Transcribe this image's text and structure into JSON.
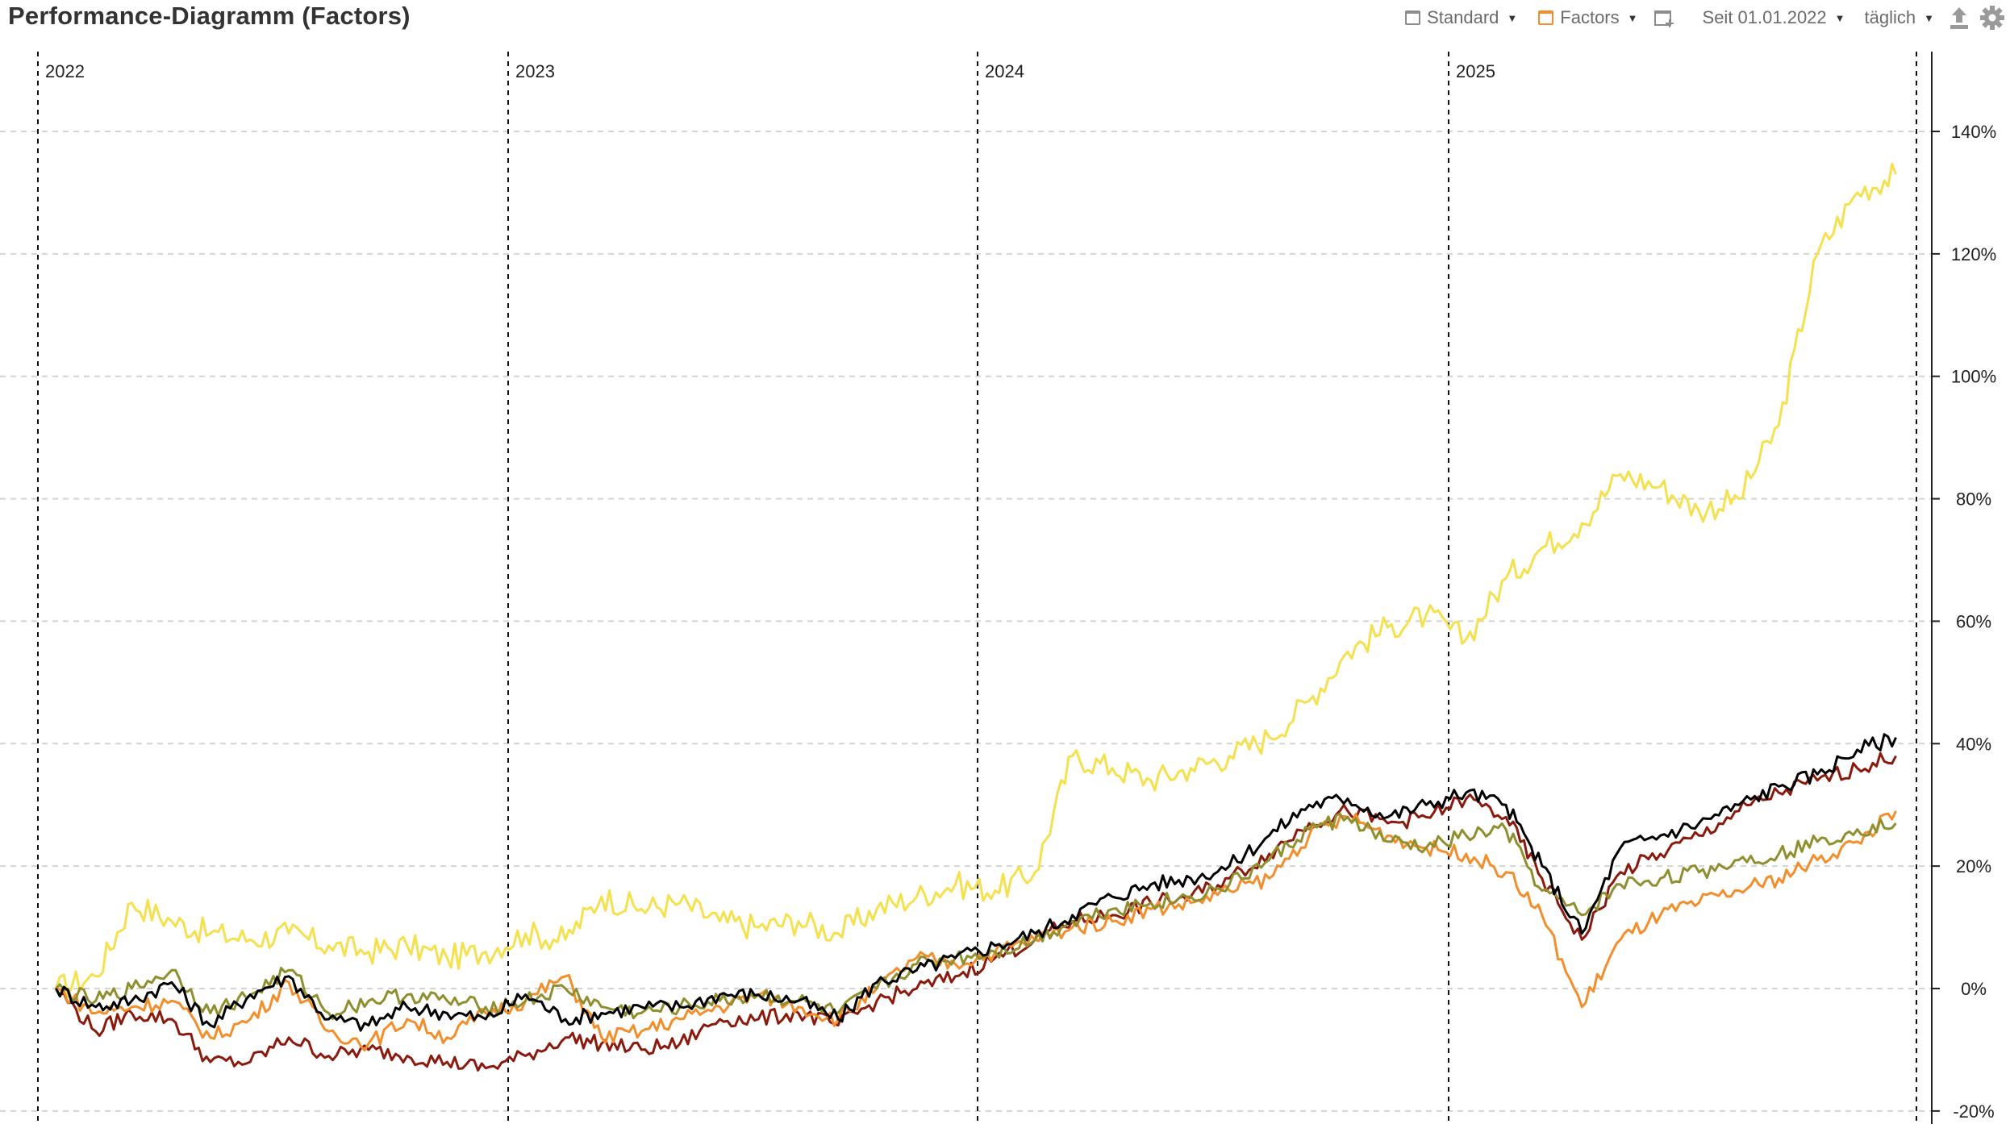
{
  "header": {
    "title": "Performance-Diagramm (Factors)"
  },
  "toolbar": {
    "standard_label": "Standard",
    "standard_color": "#8c8c8c",
    "factors_label": "Factors",
    "factors_color": "#f28e2b",
    "add_chart_icon": "add-chart-icon",
    "period_label": "Seit 01.01.2022",
    "interval_label": "täglich",
    "export_icon": "upload-icon",
    "settings_icon": "gear-icon"
  },
  "chart_data": {
    "type": "line",
    "title": "",
    "xlabel": "",
    "ylabel": "",
    "x_tick_labels": [
      "2022",
      "2023",
      "2024",
      "2025"
    ],
    "x_range": [
      "2022-01-01",
      "2025-12-31"
    ],
    "y_unit": "%",
    "y_ticks": [
      140,
      120,
      100,
      80,
      60,
      40,
      20,
      0,
      -20
    ],
    "y_tick_labels": [
      "140%",
      "120%",
      "100%",
      "80%",
      "60%",
      "40%",
      "20%",
      "0%",
      "-20%"
    ],
    "ylim": [
      -20,
      150
    ],
    "grid": "horizontal dashed",
    "year_markers": "vertical dashed",
    "series": [
      {
        "color": "#f5e050",
        "x": [
          "2022-01",
          "2022-02",
          "2022-03",
          "2022-04",
          "2022-05",
          "2022-06",
          "2022-07",
          "2022-08",
          "2022-09",
          "2022-10",
          "2022-11",
          "2022-12",
          "2023-01",
          "2023-02",
          "2023-03",
          "2023-04",
          "2023-05",
          "2023-06",
          "2023-07",
          "2023-08",
          "2023-09",
          "2023-10",
          "2023-11",
          "2023-12",
          "2024-01",
          "2024-02",
          "2024-03",
          "2024-04",
          "2024-05",
          "2024-06",
          "2024-07",
          "2024-08",
          "2024-09",
          "2024-10",
          "2024-11",
          "2024-12",
          "2025-01",
          "2025-02",
          "2025-03",
          "2025-04",
          "2025-05",
          "2025-06",
          "2025-07",
          "2025-08",
          "2025-09",
          "2025-10",
          "2025-11",
          "2025-12"
        ],
        "values": [
          0,
          2,
          14,
          11,
          9,
          8,
          9,
          7,
          6,
          7,
          5,
          6,
          9,
          8,
          15,
          13,
          14,
          11,
          10,
          11,
          9,
          13,
          15,
          17,
          16,
          19,
          38,
          36,
          34,
          36,
          38,
          41,
          47,
          55,
          59,
          61,
          57,
          67,
          72,
          76,
          84,
          82,
          78,
          80,
          92,
          120,
          130,
          133
        ]
      },
      {
        "color": "#000000",
        "x": [
          "2022-01",
          "2022-02",
          "2022-03",
          "2022-04",
          "2022-05",
          "2022-06",
          "2022-07",
          "2022-08",
          "2022-09",
          "2022-10",
          "2022-11",
          "2022-12",
          "2023-01",
          "2023-02",
          "2023-03",
          "2023-04",
          "2023-05",
          "2023-06",
          "2023-07",
          "2023-08",
          "2023-09",
          "2023-10",
          "2023-11",
          "2023-12",
          "2024-01",
          "2024-02",
          "2024-03",
          "2024-04",
          "2024-05",
          "2024-06",
          "2024-07",
          "2024-08",
          "2024-09",
          "2024-10",
          "2024-11",
          "2024-12",
          "2025-01",
          "2025-02",
          "2025-03",
          "2025-04",
          "2025-05",
          "2025-06",
          "2025-07",
          "2025-08",
          "2025-09",
          "2025-10",
          "2025-11",
          "2025-12"
        ],
        "values": [
          0,
          -3,
          -2,
          1,
          -6,
          -1,
          2,
          -5,
          -6,
          -3,
          -4,
          -5,
          -1,
          -5,
          -4,
          -3,
          -3,
          -1,
          -1,
          -2,
          -5,
          1,
          3,
          5,
          7,
          9,
          12,
          15,
          17,
          18,
          20,
          25,
          30,
          31,
          28,
          30,
          32,
          30,
          20,
          9,
          23,
          25,
          27,
          30,
          33,
          35,
          39,
          41
        ]
      },
      {
        "color": "#8b1a0e",
        "x": [
          "2022-01",
          "2022-02",
          "2022-03",
          "2022-04",
          "2022-05",
          "2022-06",
          "2022-07",
          "2022-08",
          "2022-09",
          "2022-10",
          "2022-11",
          "2022-12",
          "2023-01",
          "2023-02",
          "2023-03",
          "2023-04",
          "2023-05",
          "2023-06",
          "2023-07",
          "2023-08",
          "2023-09",
          "2023-10",
          "2023-11",
          "2023-12",
          "2024-01",
          "2024-02",
          "2024-03",
          "2024-04",
          "2024-05",
          "2024-06",
          "2024-07",
          "2024-08",
          "2024-09",
          "2024-10",
          "2024-11",
          "2024-12",
          "2025-01",
          "2025-02",
          "2025-03",
          "2025-04",
          "2025-05",
          "2025-06",
          "2025-07",
          "2025-08",
          "2025-09",
          "2025-10",
          "2025-11",
          "2025-12"
        ],
        "values": [
          0,
          -7,
          -4,
          -5,
          -12,
          -12,
          -8,
          -11,
          -10,
          -11,
          -12,
          -13,
          -11,
          -8,
          -9,
          -10,
          -9,
          -5,
          -5,
          -4,
          -6,
          -2,
          0,
          2,
          5,
          8,
          11,
          12,
          14,
          15,
          18,
          22,
          27,
          29,
          27,
          28,
          31,
          28,
          18,
          8,
          19,
          22,
          25,
          29,
          32,
          34,
          36,
          38
        ]
      },
      {
        "color": "#f28e2b",
        "x": [
          "2022-01",
          "2022-02",
          "2022-03",
          "2022-04",
          "2022-05",
          "2022-06",
          "2022-07",
          "2022-08",
          "2022-09",
          "2022-10",
          "2022-11",
          "2022-12",
          "2023-01",
          "2023-02",
          "2023-03",
          "2023-04",
          "2023-05",
          "2023-06",
          "2023-07",
          "2023-08",
          "2023-09",
          "2023-10",
          "2023-11",
          "2023-12",
          "2024-01",
          "2024-02",
          "2024-03",
          "2024-04",
          "2024-05",
          "2024-06",
          "2024-07",
          "2024-08",
          "2024-09",
          "2024-10",
          "2024-11",
          "2024-12",
          "2025-01",
          "2025-02",
          "2025-03",
          "2025-04",
          "2025-05",
          "2025-06",
          "2025-07",
          "2025-08",
          "2025-09",
          "2025-10",
          "2025-11",
          "2025-12"
        ],
        "values": [
          0,
          -4,
          -3,
          -2,
          -8,
          -5,
          1,
          -7,
          -9,
          -5,
          -8,
          -4,
          -2,
          2,
          -8,
          -7,
          -5,
          -3,
          -1,
          -3,
          -5,
          0,
          5,
          4,
          6,
          8,
          10,
          11,
          13,
          14,
          16,
          18,
          25,
          28,
          25,
          23,
          22,
          19,
          12,
          -3,
          8,
          12,
          14,
          16,
          18,
          21,
          24,
          29
        ]
      },
      {
        "color": "#8f8f30",
        "x": [
          "2022-01",
          "2022-02",
          "2022-03",
          "2022-04",
          "2022-05",
          "2022-06",
          "2022-07",
          "2022-08",
          "2022-09",
          "2022-10",
          "2022-11",
          "2022-12",
          "2023-01",
          "2023-02",
          "2023-03",
          "2023-04",
          "2023-05",
          "2023-06",
          "2023-07",
          "2023-08",
          "2023-09",
          "2023-10",
          "2023-11",
          "2023-12",
          "2024-01",
          "2024-02",
          "2024-03",
          "2024-04",
          "2024-05",
          "2024-06",
          "2024-07",
          "2024-08",
          "2024-09",
          "2024-10",
          "2024-11",
          "2024-12",
          "2025-01",
          "2025-02",
          "2025-03",
          "2025-04",
          "2025-05",
          "2025-06",
          "2025-07",
          "2025-08",
          "2025-09",
          "2025-10",
          "2025-11",
          "2025-12"
        ],
        "values": [
          0,
          -2,
          0,
          3,
          -4,
          -1,
          3,
          -4,
          -2,
          -1,
          -2,
          -3,
          -2,
          0,
          -3,
          -4,
          -3,
          -2,
          -1,
          -2,
          -4,
          0,
          4,
          5,
          6,
          8,
          11,
          13,
          14,
          15,
          17,
          21,
          26,
          28,
          24,
          23,
          25,
          26,
          16,
          12,
          17,
          18,
          19,
          21,
          22,
          24,
          26,
          27
        ]
      }
    ]
  }
}
